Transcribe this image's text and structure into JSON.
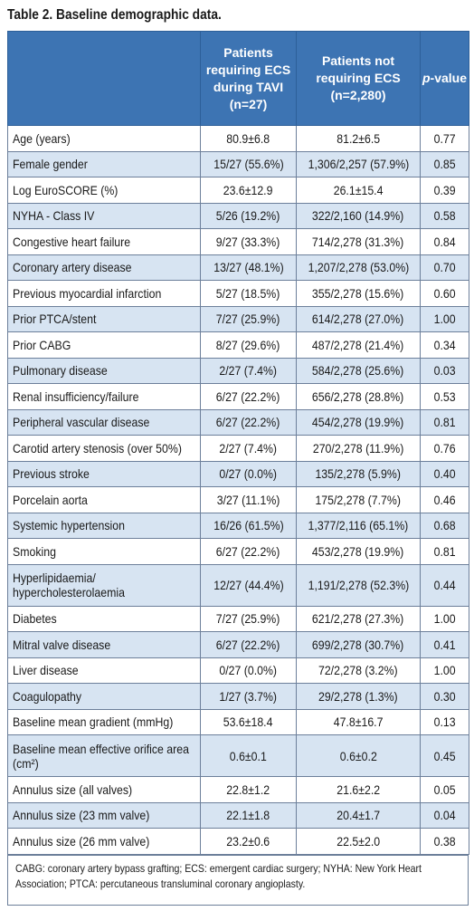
{
  "title": "Table 2. Baseline demographic data.",
  "headers": {
    "col2": "Patients requiring ECS during TAVI (n=27)",
    "col3": "Patients not requiring ECS (n=2,280)",
    "col4_italic": "p",
    "col4_rest": "-value"
  },
  "rows": [
    {
      "label": "Age (years)",
      "ecs": "80.9±6.8",
      "no_ecs": "81.2±6.5",
      "p": "0.77"
    },
    {
      "label": "Female gender",
      "ecs": "15/27 (55.6%)",
      "no_ecs": "1,306/2,257 (57.9%)",
      "p": "0.85"
    },
    {
      "label": "Log EuroSCORE (%)",
      "ecs": "23.6±12.9",
      "no_ecs": "26.1±15.4",
      "p": "0.39"
    },
    {
      "label": "NYHA - Class IV",
      "ecs": "5/26 (19.2%)",
      "no_ecs": "322/2,160 (14.9%)",
      "p": "0.58"
    },
    {
      "label": "Congestive heart failure",
      "ecs": "9/27 (33.3%)",
      "no_ecs": "714/2,278 (31.3%)",
      "p": "0.84"
    },
    {
      "label": "Coronary artery disease",
      "ecs": "13/27 (48.1%)",
      "no_ecs": "1,207/2,278 (53.0%)",
      "p": "0.70"
    },
    {
      "label": "Previous myocardial infarction",
      "ecs": "5/27 (18.5%)",
      "no_ecs": "355/2,278 (15.6%)",
      "p": "0.60"
    },
    {
      "label": "Prior PTCA/stent",
      "ecs": "7/27 (25.9%)",
      "no_ecs": "614/2,278 (27.0%)",
      "p": "1.00"
    },
    {
      "label": "Prior CABG",
      "ecs": "8/27 (29.6%)",
      "no_ecs": "487/2,278 (21.4%)",
      "p": "0.34"
    },
    {
      "label": "Pulmonary disease",
      "ecs": "2/27 (7.4%)",
      "no_ecs": "584/2,278 (25.6%)",
      "p": "0.03"
    },
    {
      "label": "Renal insufficiency/failure",
      "ecs": "6/27 (22.2%)",
      "no_ecs": "656/2,278 (28.8%)",
      "p": "0.53"
    },
    {
      "label": "Peripheral vascular disease",
      "ecs": "6/27 (22.2%)",
      "no_ecs": "454/2,278 (19.9%)",
      "p": "0.81"
    },
    {
      "label": "Carotid artery stenosis (over 50%)",
      "ecs": "2/27 (7.4%)",
      "no_ecs": "270/2,278 (11.9%)",
      "p": "0.76"
    },
    {
      "label": "Previous stroke",
      "ecs": "0/27 (0.0%)",
      "no_ecs": "135/2,278 (5.9%)",
      "p": "0.40"
    },
    {
      "label": "Porcelain aorta",
      "ecs": "3/27 (11.1%)",
      "no_ecs": "175/2,278 (7.7%)",
      "p": "0.46"
    },
    {
      "label": "Systemic hypertension",
      "ecs": "16/26 (61.5%)",
      "no_ecs": "1,377/2,116 (65.1%)",
      "p": "0.68"
    },
    {
      "label": "Smoking",
      "ecs": "6/27 (22.2%)",
      "no_ecs": "453/2,278 (19.9%)",
      "p": "0.81"
    },
    {
      "label": "Hyperlipidaemia/ hypercholesterolaemia",
      "ecs": "12/27 (44.4%)",
      "no_ecs": "1,191/2,278 (52.3%)",
      "p": "0.44"
    },
    {
      "label": "Diabetes",
      "ecs": "7/27 (25.9%)",
      "no_ecs": "621/2,278 (27.3%)",
      "p": "1.00"
    },
    {
      "label": "Mitral valve disease",
      "ecs": "6/27 (22.2%)",
      "no_ecs": "699/2,278 (30.7%)",
      "p": "0.41"
    },
    {
      "label": "Liver disease",
      "ecs": "0/27 (0.0%)",
      "no_ecs": "72/2,278 (3.2%)",
      "p": "1.00"
    },
    {
      "label": "Coagulopathy",
      "ecs": "1/27 (3.7%)",
      "no_ecs": "29/2,278 (1.3%)",
      "p": "0.30"
    },
    {
      "label": "Baseline mean gradient (mmHg)",
      "ecs": "53.6±18.4",
      "no_ecs": "47.8±16.7",
      "p": "0.13"
    },
    {
      "label": "Baseline mean effective orifice area (cm²)",
      "ecs": "0.6±0.1",
      "no_ecs": "0.6±0.2",
      "p": "0.45"
    },
    {
      "label": "Annulus size (all valves)",
      "ecs": "22.8±1.2",
      "no_ecs": "21.6±2.2",
      "p": "0.05"
    },
    {
      "label": "Annulus size (23 mm valve)",
      "ecs": "22.1±1.8",
      "no_ecs": "20.4±1.7",
      "p": "0.04"
    },
    {
      "label": "Annulus size (26 mm valve)",
      "ecs": "23.2±0.6",
      "no_ecs": "22.5±2.0",
      "p": "0.38"
    }
  ],
  "footnote": "CABG: coronary artery bypass grafting; ECS: emergent cardiac surgery; NYHA: New York Heart Association; PTCA: percutaneous transluminal coronary angioplasty.",
  "colors": {
    "header_bg": "#3d74b3",
    "row_alt_bg": "#d7e4f2",
    "border": "#6c7f9a"
  }
}
